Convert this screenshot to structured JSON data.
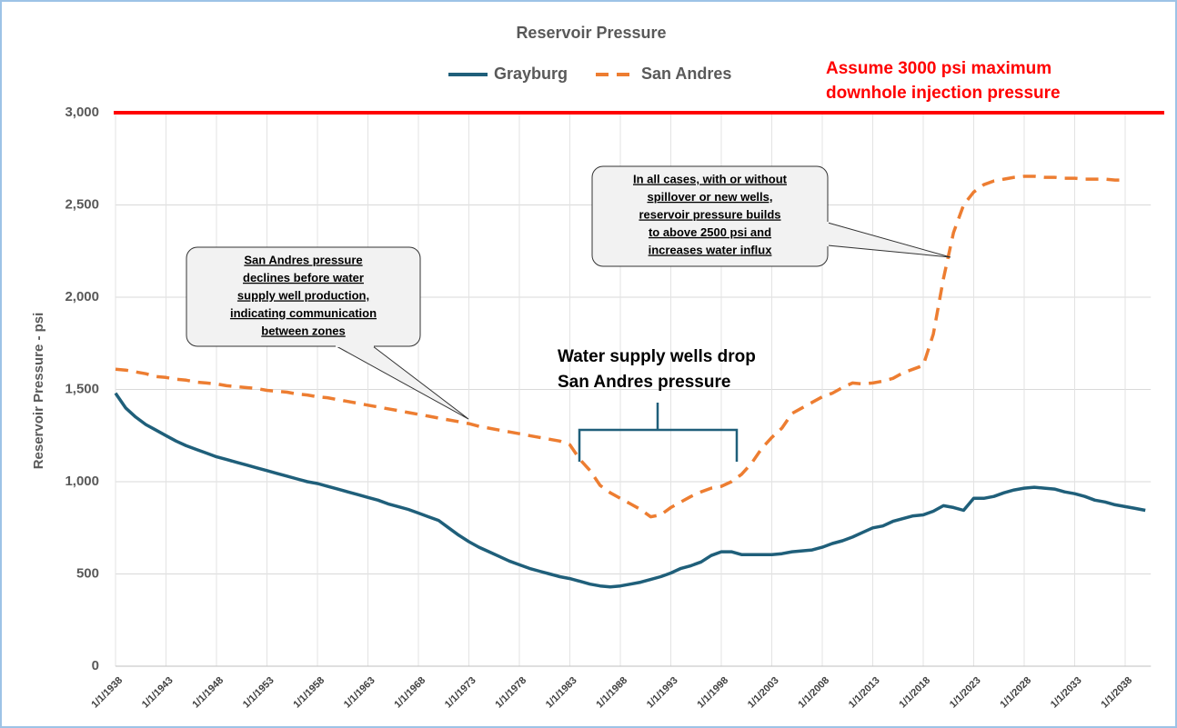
{
  "chart_data": {
    "type": "line",
    "title": "Reservoir Pressure",
    "y_label": "Reservoir Pressure - psi",
    "categories": [
      "1/1/1938",
      null,
      null,
      null,
      null,
      "1/1/1943",
      null,
      null,
      null,
      null,
      "1/1/1948",
      null,
      null,
      null,
      null,
      "1/1/1953",
      null,
      null,
      null,
      null,
      "1/1/1958",
      null,
      null,
      null,
      null,
      "1/1/1963",
      null,
      null,
      null,
      null,
      "1/1/1968",
      null,
      null,
      null,
      null,
      "1/1/1973",
      null,
      null,
      null,
      null,
      "1/1/1978",
      null,
      null,
      null,
      null,
      "1/1/1983",
      null,
      null,
      null,
      null,
      "1/1/1988",
      null,
      null,
      null,
      null,
      "1/1/1993",
      null,
      null,
      null,
      null,
      "1/1/1998",
      null,
      null,
      null,
      null,
      "1/1/2003",
      null,
      null,
      null,
      null,
      "1/1/2008",
      null,
      null,
      null,
      null,
      "1/1/2013",
      null,
      null,
      null,
      null,
      "1/1/2018",
      null,
      null,
      null,
      null,
      "1/1/2023",
      null,
      null,
      null,
      null,
      "1/1/2028",
      null,
      null,
      null,
      null,
      "1/1/2033",
      null,
      null,
      null,
      null,
      "1/1/2038",
      null,
      null
    ],
    "series": [
      {
        "name": "Grayburg",
        "color": "#1f5f7a",
        "dash": false,
        "values": [
          1480,
          1400,
          1350,
          1310,
          1280,
          1250,
          1220,
          1195,
          1175,
          1155,
          1135,
          1120,
          1105,
          1090,
          1075,
          1060,
          1045,
          1030,
          1015,
          1000,
          990,
          975,
          960,
          945,
          930,
          915,
          900,
          880,
          865,
          850,
          830,
          810,
          790,
          750,
          710,
          675,
          645,
          620,
          595,
          570,
          550,
          530,
          515,
          500,
          485,
          475,
          460,
          445,
          435,
          430,
          435,
          445,
          455,
          470,
          485,
          505,
          530,
          545,
          565,
          600,
          620,
          620,
          605,
          605,
          605,
          605,
          610,
          620,
          625,
          630,
          645,
          665,
          680,
          700,
          725,
          750,
          760,
          785,
          800,
          815,
          820,
          840,
          870,
          860,
          845,
          910,
          910,
          920,
          940,
          955,
          965,
          970,
          965,
          960,
          945,
          935,
          920,
          900,
          890,
          875,
          865,
          855,
          845
        ]
      },
      {
        "name": "San Andres",
        "color": "#ed7d31",
        "dash": true,
        "values": [
          1610,
          1605,
          1595,
          1585,
          1570,
          1565,
          1555,
          1550,
          1540,
          1535,
          1530,
          1520,
          1515,
          1510,
          1505,
          1495,
          1490,
          1485,
          1475,
          1470,
          1460,
          1455,
          1445,
          1435,
          1425,
          1415,
          1405,
          1395,
          1385,
          1375,
          1365,
          1355,
          1345,
          1335,
          1325,
          1315,
          1300,
          1290,
          1280,
          1270,
          1260,
          1250,
          1240,
          1230,
          1220,
          1200,
          1120,
          1060,
          980,
          940,
          910,
          880,
          850,
          810,
          820,
          860,
          890,
          920,
          945,
          965,
          975,
          1000,
          1040,
          1100,
          1180,
          1240,
          1290,
          1370,
          1400,
          1430,
          1460,
          1480,
          1510,
          1535,
          1530,
          1535,
          1545,
          1560,
          1590,
          1610,
          1630,
          1800,
          2100,
          2350,
          2500,
          2570,
          2610,
          2630,
          2640,
          2650,
          2655,
          2655,
          2650,
          2650,
          2645,
          2645,
          2640,
          2640,
          2640,
          2635,
          2635,
          null,
          null
        ]
      }
    ],
    "ylim": [
      0,
      3000
    ],
    "yticks": [
      0,
      500,
      {
        "value": 1000,
        "label": "1,000"
      },
      {
        "value": 1500,
        "label": "1,500"
      },
      {
        "value": 2000,
        "label": "2,000"
      },
      {
        "value": 2500,
        "label": "2,500"
      },
      {
        "value": 3000,
        "label": "3,000"
      }
    ],
    "grid": true,
    "reference_line": {
      "value": 3000,
      "color": "#ff0000",
      "label": [
        "Assume 3000 psi maximum",
        "downhole injection pressure"
      ]
    },
    "callouts": [
      {
        "lines": [
          "San Andres pressure",
          "declines before water",
          "supply well production,",
          "indicating communication",
          "between zones"
        ]
      },
      {
        "lines": [
          "In all cases, with or without",
          "spillover or new wells,",
          "reservoir pressure builds",
          "to above 2500 psi and",
          "increases water influx"
        ]
      }
    ],
    "bracket_note": [
      "Water supply wells drop",
      "San Andres pressure"
    ]
  }
}
